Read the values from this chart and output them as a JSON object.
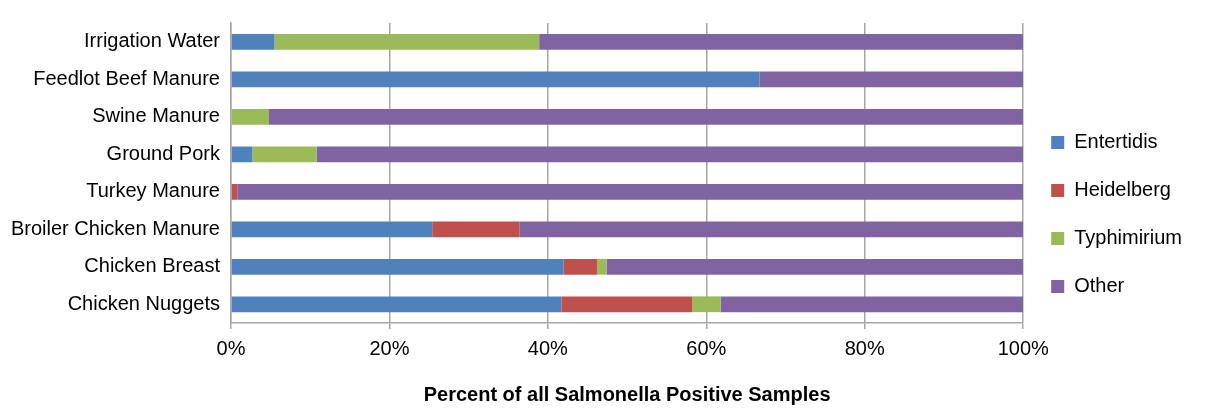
{
  "chart_data": {
    "type": "bar",
    "orientation": "horizontal",
    "stacked": true,
    "xlabel": "Percent of all Salmonella Positive Samples",
    "categories": [
      "Irrigation Water",
      "Feedlot Beef Manure",
      "Swine Manure",
      "Ground Pork",
      "Turkey Manure",
      "Broiler Chicken Manure",
      "Chicken Breast",
      "Chicken Nuggets"
    ],
    "series": [
      {
        "name": "Entertidis",
        "color": "#4f81bd",
        "values": [
          5.5,
          66.7,
          0,
          2.7,
          0,
          25.4,
          42.0,
          41.7
        ]
      },
      {
        "name": "Heidelberg",
        "color": "#c0504d",
        "values": [
          0,
          0,
          0,
          0,
          0.8,
          11.0,
          4.2,
          16.5
        ]
      },
      {
        "name": "Typhimirium",
        "color": "#9bbb59",
        "values": [
          33.4,
          0,
          4.8,
          8.1,
          0,
          0,
          1.2,
          3.6
        ]
      },
      {
        "name": "Other",
        "color": "#8064a2",
        "values": [
          61.1,
          33.3,
          95.2,
          89.2,
          99.2,
          63.6,
          52.6,
          38.2
        ]
      }
    ],
    "xlim": [
      0,
      100
    ],
    "xticks": [
      {
        "value": 0,
        "label": "0%"
      },
      {
        "value": 20,
        "label": "20%"
      },
      {
        "value": 40,
        "label": "40%"
      },
      {
        "value": 60,
        "label": "60%"
      },
      {
        "value": 80,
        "label": "80%"
      },
      {
        "value": 100,
        "label": "100%"
      }
    ],
    "grid": "x",
    "legend": "right"
  }
}
